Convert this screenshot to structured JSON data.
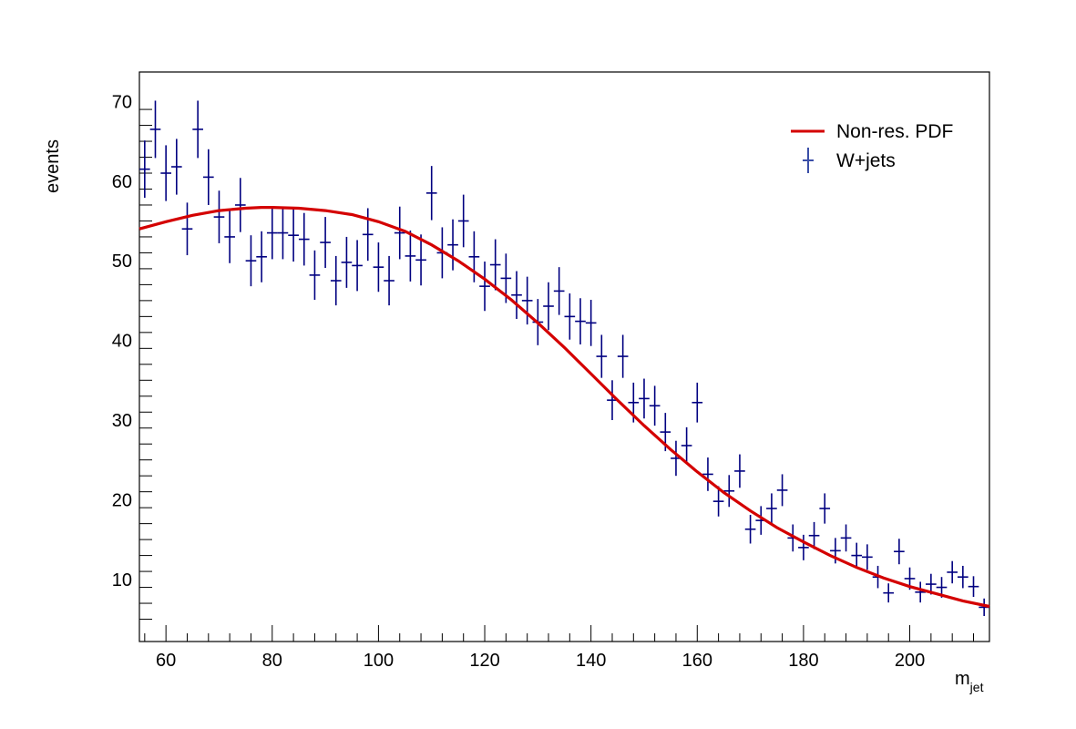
{
  "chart_data": {
    "type": "scatter",
    "title": "",
    "xlabel": "m",
    "xlabel_sub": "jet",
    "ylabel": "events",
    "xlim": [
      55,
      215
    ],
    "ylim": [
      2.2,
      73.7
    ],
    "x_ticks": [
      60,
      80,
      100,
      120,
      140,
      160,
      180,
      200
    ],
    "y_ticks": [
      10,
      20,
      30,
      40,
      50,
      60,
      70
    ],
    "grid": false,
    "legend_position": "top-right",
    "colors": {
      "data": "#000080",
      "fit": "#d40000",
      "legend_data_marker": "#3b4fa8"
    },
    "series": [
      {
        "name": "W+jets",
        "kind": "points_with_errors",
        "x": [
          56,
          58,
          60,
          62,
          64,
          66,
          68,
          70,
          72,
          74,
          76,
          78,
          80,
          82,
          84,
          86,
          88,
          90,
          92,
          94,
          96,
          98,
          100,
          102,
          104,
          106,
          108,
          110,
          112,
          114,
          116,
          118,
          120,
          122,
          124,
          126,
          128,
          130,
          132,
          134,
          136,
          138,
          140,
          142,
          144,
          146,
          148,
          150,
          152,
          154,
          156,
          158,
          160,
          162,
          164,
          166,
          168,
          170,
          172,
          174,
          176,
          178,
          180,
          182,
          184,
          186,
          188,
          190,
          192,
          194,
          196,
          198,
          200,
          202,
          204,
          206,
          208,
          210,
          212,
          214
        ],
        "y": [
          61.5,
          66.5,
          61,
          61.8,
          54,
          66.5,
          60.5,
          55.5,
          53,
          57,
          50,
          50.5,
          53.5,
          53.5,
          53.2,
          52.7,
          48.2,
          52.3,
          47.5,
          49.8,
          49.4,
          53.3,
          49.2,
          47.5,
          53.5,
          50.6,
          50.1,
          58.5,
          51,
          52,
          55,
          50.5,
          46.8,
          49.5,
          47.8,
          45.7,
          45,
          42.3,
          44.3,
          46.2,
          43,
          42.4,
          42.2,
          38,
          32.5,
          38,
          32.2,
          32.7,
          31.8,
          28.5,
          25.2,
          26.8,
          32.2,
          23.2,
          19.8,
          21.1,
          23.6,
          16.3,
          17.4,
          18.9,
          21.2,
          15.2,
          14,
          15.5,
          18.9,
          13.6,
          15.2,
          13,
          12.8,
          10.3,
          8.3,
          13.5,
          10.1,
          8.4,
          9.4,
          9,
          10.9,
          10.3,
          9.1,
          6.5
        ],
        "err": [
          3.6,
          3.6,
          3.5,
          3.5,
          3.3,
          3.6,
          3.5,
          3.3,
          3.3,
          3.4,
          3.2,
          3.2,
          3.3,
          3.3,
          3.3,
          3.3,
          3.1,
          3.2,
          3.1,
          3.2,
          3.2,
          3.3,
          3.1,
          3.1,
          3.3,
          3.2,
          3.2,
          3.4,
          3.2,
          3.2,
          3.3,
          3.2,
          3.1,
          3.2,
          3.1,
          3.0,
          3.0,
          2.9,
          3.0,
          3.0,
          2.9,
          2.9,
          2.9,
          2.7,
          2.5,
          2.7,
          2.5,
          2.5,
          2.5,
          2.4,
          2.2,
          2.3,
          2.5,
          2.1,
          1.9,
          2.0,
          2.1,
          1.8,
          1.8,
          1.9,
          2.0,
          1.7,
          1.6,
          1.7,
          1.9,
          1.6,
          1.7,
          1.6,
          1.6,
          1.4,
          1.2,
          1.6,
          1.4,
          1.3,
          1.3,
          1.3,
          1.4,
          1.4,
          1.3,
          1.1
        ]
      },
      {
        "name": "Non-res. PDF",
        "kind": "curve",
        "x": [
          55,
          60,
          65,
          70,
          75,
          78,
          80,
          85,
          90,
          95,
          100,
          105,
          110,
          115,
          120,
          125,
          130,
          135,
          140,
          145,
          150,
          155,
          160,
          165,
          170,
          175,
          180,
          185,
          190,
          195,
          200,
          205,
          210,
          215
        ],
        "y": [
          54,
          54.9,
          55.7,
          56.3,
          56.6,
          56.7,
          56.7,
          56.6,
          56.3,
          55.8,
          54.9,
          53.7,
          52,
          50,
          47.7,
          45.1,
          42.2,
          39.1,
          35.8,
          32.5,
          29.3,
          26.3,
          23.5,
          20.9,
          18.6,
          16.5,
          14.7,
          13,
          11.5,
          10.2,
          9.1,
          8.2,
          7.3,
          6.6
        ]
      }
    ]
  }
}
